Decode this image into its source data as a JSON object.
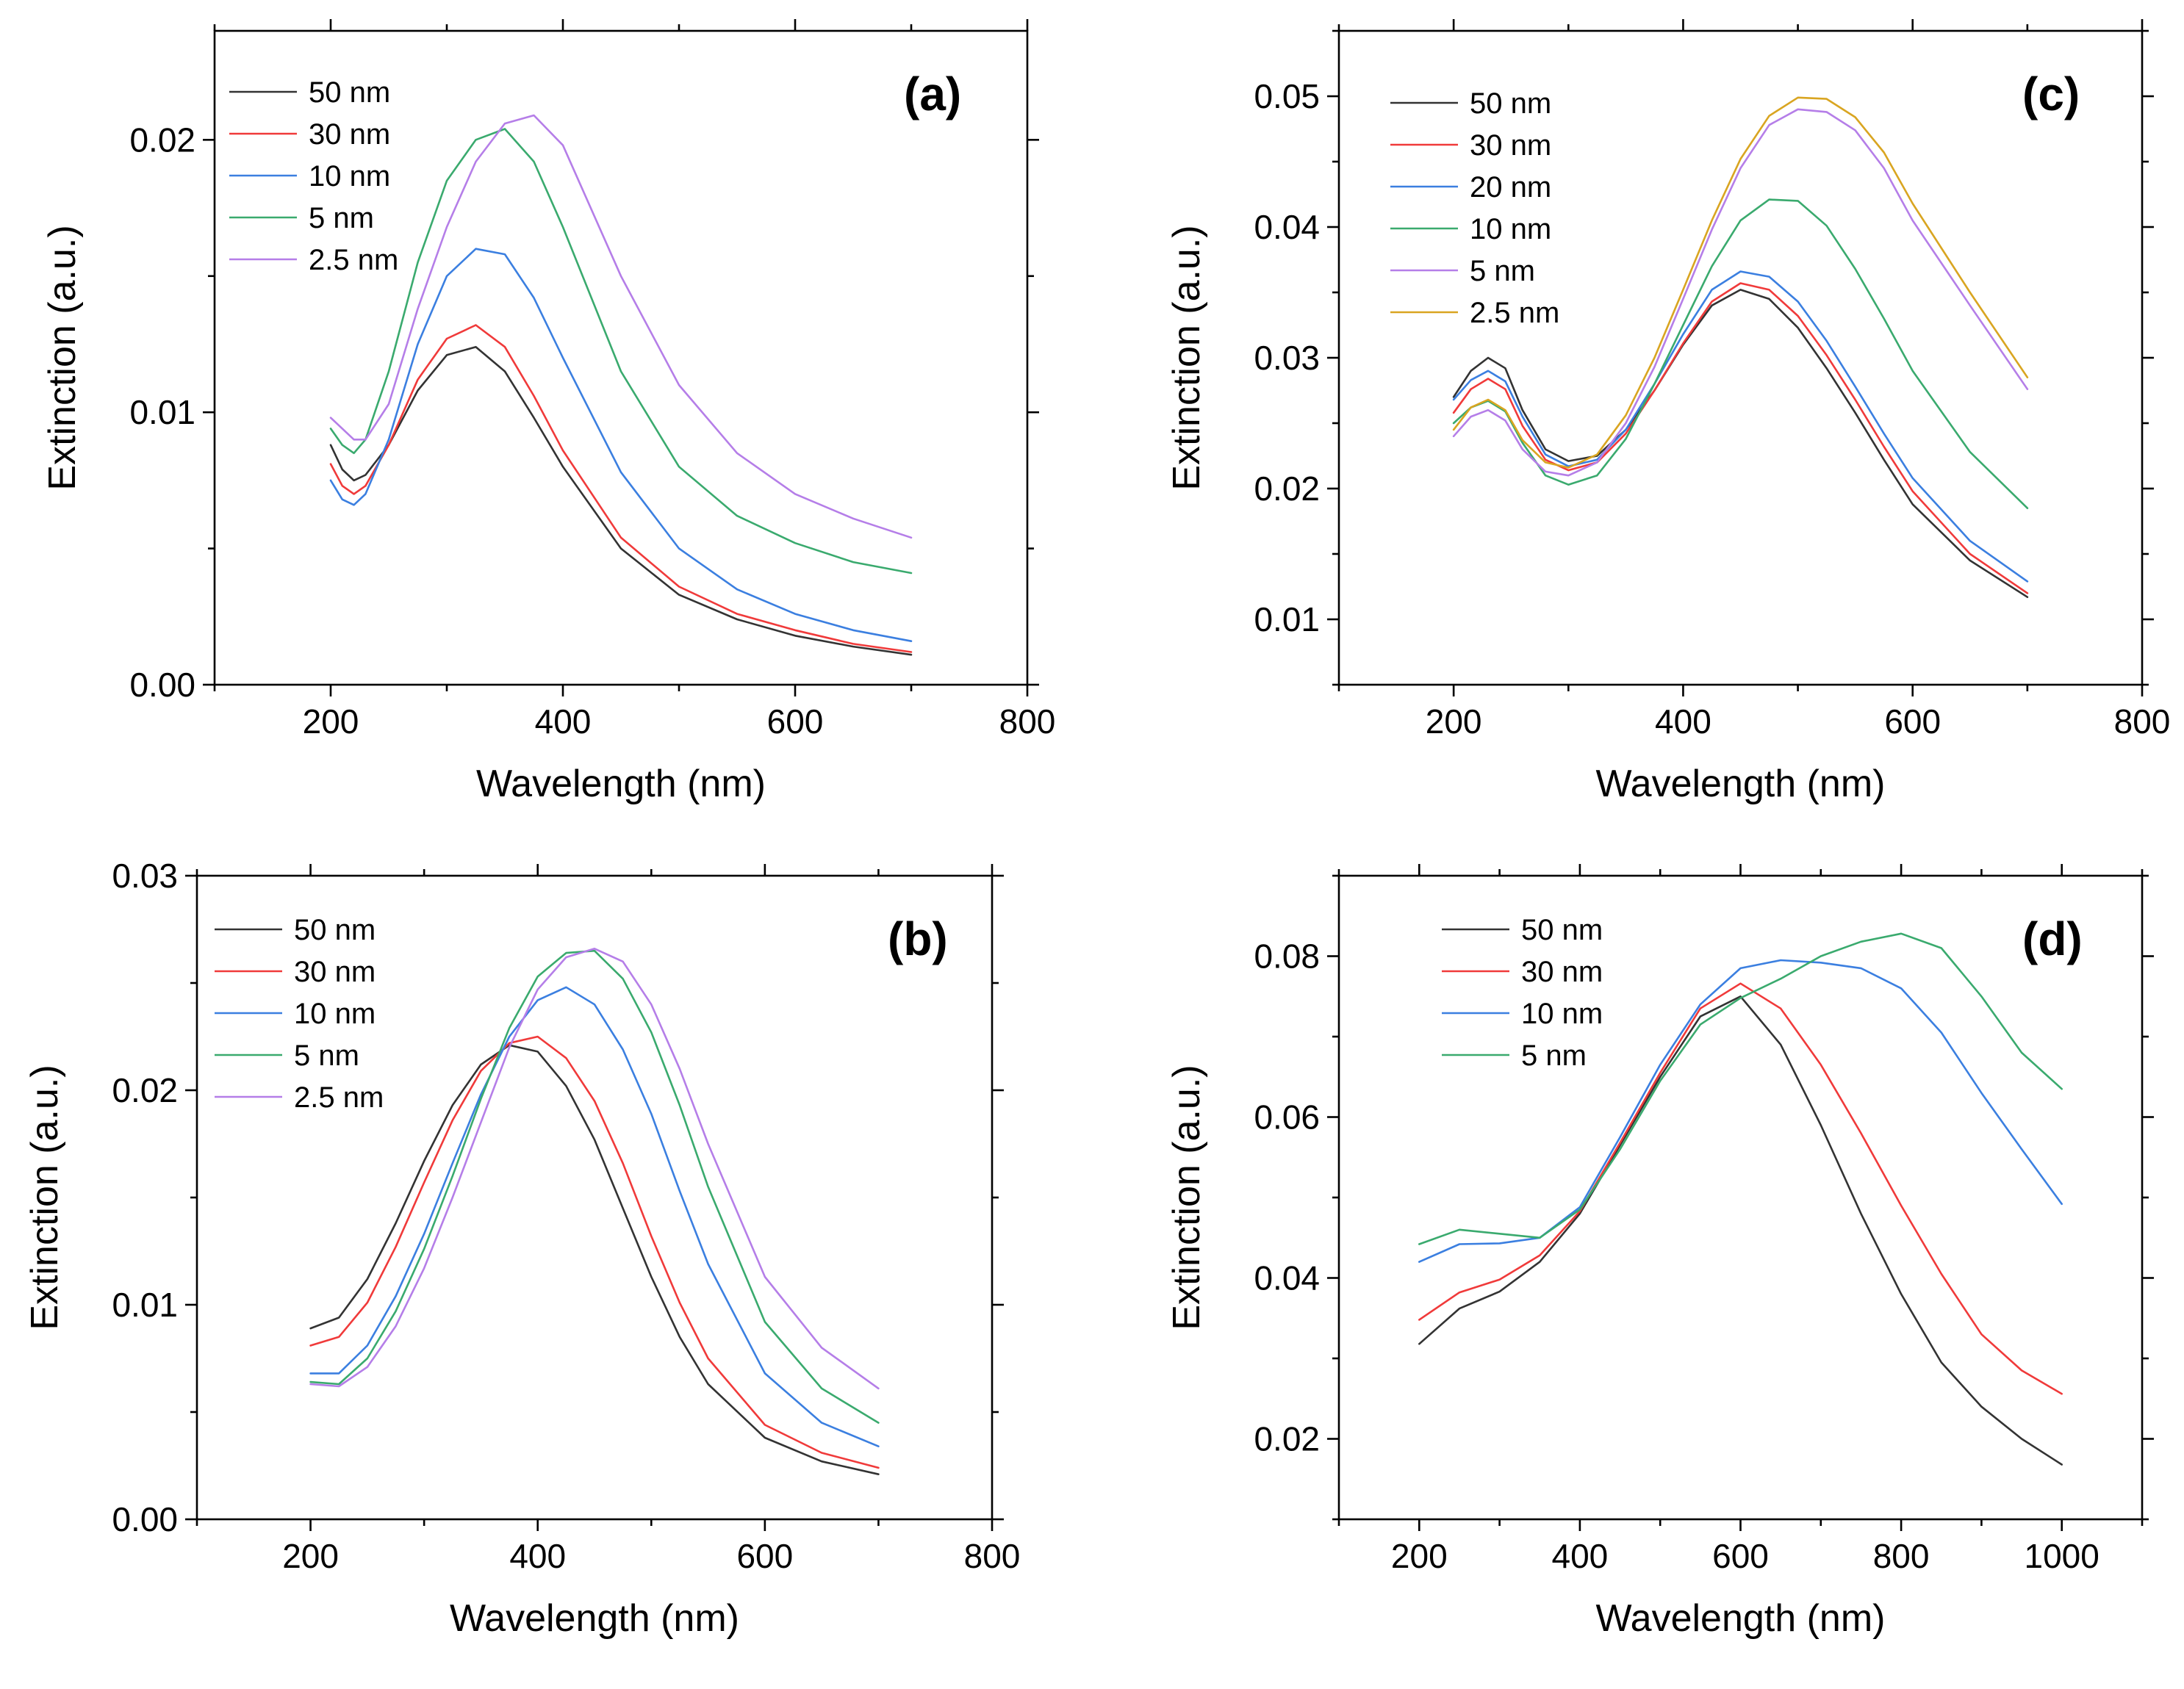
{
  "colors": {
    "50 nm": "#333333",
    "30 nm": "#f03a3a",
    "20 nm": "#3b7fe0",
    "10 nm": "#3b7fe0",
    "5 nm": "#3aaa6e",
    "2.5 nm": "#b57ee8",
    "2.5 nm (c)": "#d9a521"
  },
  "chart_data": [
    {
      "panel": "(a)",
      "type": "line",
      "xlabel": "Wavelength (nm)",
      "ylabel": "Extinction (a.u.)",
      "xlim": [
        100,
        800
      ],
      "ylim": [
        0.0,
        0.024
      ],
      "xticks": [
        200,
        400,
        600,
        800
      ],
      "yticks": [
        0.0,
        0.01,
        0.02
      ],
      "ytick_labels": [
        "0.00",
        "0.01",
        "0.02"
      ],
      "x": [
        200,
        210,
        220,
        230,
        250,
        275,
        300,
        325,
        350,
        375,
        400,
        450,
        500,
        550,
        600,
        650,
        700
      ],
      "series": [
        {
          "name": "50 nm",
          "color": "#333333",
          "values": [
            0.0088,
            0.0079,
            0.0075,
            0.0077,
            0.0088,
            0.0108,
            0.0121,
            0.0124,
            0.0115,
            0.0098,
            0.008,
            0.005,
            0.0033,
            0.0024,
            0.0018,
            0.0014,
            0.0011
          ]
        },
        {
          "name": "30 nm",
          "color": "#f03a3a",
          "values": [
            0.0081,
            0.0073,
            0.007,
            0.0073,
            0.0088,
            0.0112,
            0.0127,
            0.0132,
            0.0124,
            0.0106,
            0.0086,
            0.0054,
            0.0036,
            0.0026,
            0.002,
            0.0015,
            0.0012
          ]
        },
        {
          "name": "10 nm",
          "color": "#3b7fe0",
          "values": [
            0.0075,
            0.0068,
            0.0066,
            0.007,
            0.009,
            0.0125,
            0.015,
            0.016,
            0.0158,
            0.0142,
            0.012,
            0.0078,
            0.005,
            0.0035,
            0.0026,
            0.002,
            0.0016
          ]
        },
        {
          "name": "5 nm",
          "color": "#3aaa6e",
          "values": [
            0.0094,
            0.0088,
            0.0085,
            0.009,
            0.0115,
            0.0155,
            0.0185,
            0.02,
            0.0204,
            0.0192,
            0.0168,
            0.0115,
            0.008,
            0.0062,
            0.0052,
            0.0045,
            0.0041
          ]
        },
        {
          "name": "2.5 nm",
          "color": "#b57ee8",
          "values": [
            0.0098,
            0.0094,
            0.009,
            0.009,
            0.0103,
            0.0138,
            0.0168,
            0.0192,
            0.0206,
            0.0209,
            0.0198,
            0.015,
            0.011,
            0.0085,
            0.007,
            0.0061,
            0.0054
          ]
        }
      ]
    },
    {
      "panel": "(b)",
      "type": "line",
      "xlabel": "Wavelength (nm)",
      "ylabel": "Extinction (a.u.)",
      "xlim": [
        100,
        800
      ],
      "ylim": [
        0.0,
        0.03
      ],
      "xticks": [
        200,
        400,
        600,
        800
      ],
      "yticks": [
        0.0,
        0.01,
        0.02,
        0.03
      ],
      "ytick_labels": [
        "0.00",
        "0.01",
        "0.02",
        "0.03"
      ],
      "x": [
        200,
        225,
        250,
        275,
        300,
        325,
        350,
        375,
        400,
        425,
        450,
        475,
        500,
        525,
        550,
        600,
        650,
        700
      ],
      "series": [
        {
          "name": "50 nm",
          "color": "#333333",
          "values": [
            0.0089,
            0.0094,
            0.0112,
            0.0138,
            0.0167,
            0.0193,
            0.0212,
            0.0221,
            0.0218,
            0.0202,
            0.0177,
            0.0145,
            0.0113,
            0.0085,
            0.0063,
            0.0038,
            0.0027,
            0.0021
          ]
        },
        {
          "name": "30 nm",
          "color": "#f03a3a",
          "values": [
            0.0081,
            0.0085,
            0.0101,
            0.0127,
            0.0157,
            0.0186,
            0.0209,
            0.0222,
            0.0225,
            0.0215,
            0.0195,
            0.0166,
            0.0132,
            0.0101,
            0.0075,
            0.0044,
            0.0031,
            0.0024
          ]
        },
        {
          "name": "10 nm",
          "color": "#3b7fe0",
          "values": [
            0.0068,
            0.0068,
            0.0081,
            0.0104,
            0.0133,
            0.0166,
            0.0198,
            0.0225,
            0.0242,
            0.0248,
            0.024,
            0.0219,
            0.0189,
            0.0153,
            0.0119,
            0.0068,
            0.0045,
            0.0034
          ]
        },
        {
          "name": "5 nm",
          "color": "#3aaa6e",
          "values": [
            0.0064,
            0.0063,
            0.0075,
            0.0097,
            0.0126,
            0.016,
            0.0196,
            0.0229,
            0.0253,
            0.0264,
            0.0265,
            0.0252,
            0.0227,
            0.0193,
            0.0155,
            0.0092,
            0.0061,
            0.0045
          ]
        },
        {
          "name": "2.5 nm",
          "color": "#b57ee8",
          "values": [
            0.0063,
            0.0062,
            0.0071,
            0.009,
            0.0117,
            0.015,
            0.0185,
            0.022,
            0.0247,
            0.0262,
            0.0266,
            0.026,
            0.024,
            0.021,
            0.0175,
            0.0113,
            0.008,
            0.0061
          ]
        }
      ]
    },
    {
      "panel": "(c)",
      "type": "line",
      "xlabel": "Wavelength (nm)",
      "ylabel": "Extinction (a.u.)",
      "xlim": [
        100,
        800
      ],
      "ylim": [
        0.005,
        0.055
      ],
      "xticks": [
        200,
        400,
        600,
        800
      ],
      "yticks": [
        0.01,
        0.02,
        0.03,
        0.04,
        0.05
      ],
      "ytick_labels": [
        "0.01",
        "0.02",
        "0.03",
        "0.04",
        "0.05"
      ],
      "x": [
        200,
        215,
        230,
        245,
        260,
        280,
        300,
        325,
        350,
        375,
        400,
        425,
        450,
        475,
        500,
        525,
        550,
        575,
        600,
        650,
        700
      ],
      "series": [
        {
          "name": "50 nm",
          "color": "#333333",
          "values": [
            0.027,
            0.029,
            0.03,
            0.0292,
            0.026,
            0.023,
            0.0221,
            0.0225,
            0.0245,
            0.0275,
            0.031,
            0.034,
            0.0352,
            0.0345,
            0.0323,
            0.0292,
            0.0258,
            0.0222,
            0.0188,
            0.0145,
            0.0117
          ]
        },
        {
          "name": "30 nm",
          "color": "#f03a3a",
          "values": [
            0.0258,
            0.0276,
            0.0284,
            0.0276,
            0.0248,
            0.0222,
            0.0214,
            0.022,
            0.0242,
            0.0275,
            0.0311,
            0.0343,
            0.0357,
            0.0352,
            0.0332,
            0.0302,
            0.0268,
            0.0232,
            0.0198,
            0.015,
            0.012
          ]
        },
        {
          "name": "20 nm",
          "color": "#3b7fe0",
          "values": [
            0.0268,
            0.0283,
            0.029,
            0.0282,
            0.0255,
            0.0226,
            0.0217,
            0.0222,
            0.0245,
            0.028,
            0.0318,
            0.0352,
            0.0366,
            0.0362,
            0.0343,
            0.0313,
            0.0278,
            0.0242,
            0.0208,
            0.016,
            0.0129
          ]
        },
        {
          "name": "10 nm",
          "color": "#3aaa6e",
          "values": [
            0.025,
            0.0262,
            0.0267,
            0.0259,
            0.0235,
            0.021,
            0.0203,
            0.021,
            0.0238,
            0.028,
            0.0325,
            0.037,
            0.0405,
            0.0421,
            0.042,
            0.0401,
            0.0368,
            0.033,
            0.029,
            0.0228,
            0.0185
          ]
        },
        {
          "name": "5 nm",
          "color": "#b57ee8",
          "values": [
            0.024,
            0.0255,
            0.026,
            0.0252,
            0.023,
            0.0213,
            0.021,
            0.022,
            0.025,
            0.0293,
            0.0345,
            0.0398,
            0.0445,
            0.0478,
            0.049,
            0.0488,
            0.0474,
            0.0445,
            0.0405,
            0.034,
            0.0276
          ]
        },
        {
          "name": "2.5 nm",
          "color": "#d9a521",
          "values": [
            0.0245,
            0.0262,
            0.0268,
            0.026,
            0.0237,
            0.022,
            0.0216,
            0.0226,
            0.0256,
            0.03,
            0.0352,
            0.0405,
            0.0452,
            0.0485,
            0.0499,
            0.0498,
            0.0484,
            0.0457,
            0.0418,
            0.035,
            0.0285
          ]
        }
      ]
    },
    {
      "panel": "(d)",
      "type": "line",
      "xlabel": "Wavelength (nm)",
      "ylabel": "Extinction (a.u.)",
      "xlim": [
        100,
        1100
      ],
      "ylim": [
        0.01,
        0.09
      ],
      "xticks": [
        200,
        400,
        600,
        800,
        1000
      ],
      "yticks": [
        0.02,
        0.04,
        0.06,
        0.08
      ],
      "ytick_labels": [
        "0.02",
        "0.04",
        "0.06",
        "0.08"
      ],
      "x": [
        200,
        250,
        300,
        350,
        400,
        450,
        500,
        550,
        600,
        650,
        700,
        750,
        800,
        850,
        900,
        950,
        1000
      ],
      "series": [
        {
          "name": "50 nm",
          "color": "#333333",
          "values": [
            0.0318,
            0.0362,
            0.0383,
            0.042,
            0.048,
            0.0565,
            0.065,
            0.0725,
            0.075,
            0.069,
            0.059,
            0.048,
            0.038,
            0.0295,
            0.024,
            0.02,
            0.0168
          ]
        },
        {
          "name": "30 nm",
          "color": "#f03a3a",
          "values": [
            0.0348,
            0.0382,
            0.0398,
            0.0428,
            0.0483,
            0.0568,
            0.0655,
            0.0735,
            0.0766,
            0.0735,
            0.0665,
            0.058,
            0.049,
            0.0405,
            0.033,
            0.0285,
            0.0256
          ]
        },
        {
          "name": "10 nm",
          "color": "#3b7fe0",
          "values": [
            0.042,
            0.0442,
            0.0443,
            0.045,
            0.0488,
            0.0575,
            0.0665,
            0.074,
            0.0785,
            0.0795,
            0.0792,
            0.0785,
            0.076,
            0.0705,
            0.063,
            0.056,
            0.0492
          ]
        },
        {
          "name": "5 nm",
          "color": "#3aaa6e",
          "values": [
            0.0442,
            0.046,
            0.0455,
            0.045,
            0.0485,
            0.056,
            0.0645,
            0.0715,
            0.0748,
            0.0772,
            0.08,
            0.0818,
            0.0828,
            0.081,
            0.075,
            0.068,
            0.0635
          ]
        }
      ]
    }
  ]
}
